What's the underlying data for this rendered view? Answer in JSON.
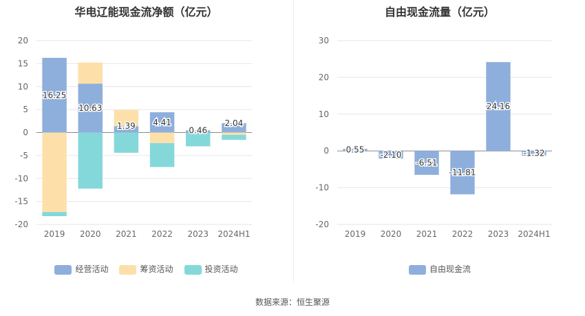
{
  "footer": {
    "source": "数据来源：恒生聚源"
  },
  "chart_data": [
    {
      "type": "bar",
      "stacked": true,
      "title": "华电辽能现金流净额（亿元）",
      "categories": [
        "2019",
        "2020",
        "2021",
        "2022",
        "2023",
        "2024H1"
      ],
      "ylim": [
        -20,
        20
      ],
      "yticks": [
        20,
        15,
        10,
        5,
        0,
        -5,
        -10,
        -15,
        -20
      ],
      "grid": true,
      "legend_position": "bottom",
      "series": [
        {
          "name": "经营活动",
          "color": "#8eafdc",
          "values": [
            16.25,
            10.63,
            1.39,
            4.41,
            0.46,
            2.04
          ]
        },
        {
          "name": "筹资活动",
          "color": "#fde0a9",
          "values": [
            -17.3,
            4.6,
            3.5,
            -2.3,
            0.1,
            -0.5
          ]
        },
        {
          "name": "投资活动",
          "color": "#85d8da",
          "values": [
            -0.9,
            -12.2,
            -4.4,
            -5.2,
            -3.0,
            -1.1
          ]
        }
      ],
      "data_labels": [
        "16.25",
        "10.63",
        "1.39",
        "4.41",
        "0.46",
        "2.04"
      ]
    },
    {
      "type": "bar",
      "title": "自由现金流量（亿元）",
      "categories": [
        "2019",
        "2020",
        "2021",
        "2022",
        "2023",
        "2024H1"
      ],
      "ylim": [
        -20,
        30
      ],
      "yticks": [
        30,
        20,
        10,
        0,
        -10,
        -20
      ],
      "grid": true,
      "legend_position": "bottom",
      "series": [
        {
          "name": "自由现金流",
          "color": "#8eafdc",
          "values": [
            0.55,
            -2.1,
            -6.51,
            -11.81,
            24.16,
            -1.32
          ]
        }
      ],
      "data_labels": [
        "0.55",
        "-2.10",
        "-6.51",
        "-11.81",
        "24.16",
        "-1.32"
      ]
    }
  ]
}
